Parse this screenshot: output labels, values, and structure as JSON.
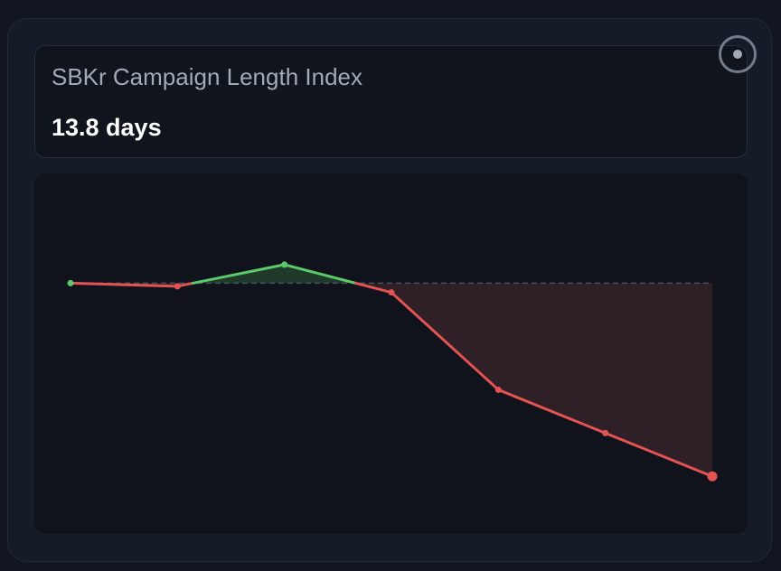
{
  "header": {
    "title": "SBKr Campaign Length Index",
    "value": "13.8 days"
  },
  "colors": {
    "up": "#5cc96a",
    "down": "#e25352",
    "baseline": "#4a515e",
    "up_fill": "#1f3a2a",
    "down_fill": "#2f1f26"
  },
  "icons": {
    "target_button": "target-circle-icon"
  },
  "chart_data": {
    "type": "line",
    "title": "",
    "xlabel": "",
    "ylabel": "",
    "baseline": 20,
    "x": [
      0,
      1,
      2,
      3,
      4,
      5,
      6
    ],
    "values": [
      20,
      19.8,
      21.2,
      19.4,
      13.1,
      10.3,
      7.5
    ],
    "ylim": [
      5,
      24
    ],
    "grid": false,
    "legend": "none"
  }
}
